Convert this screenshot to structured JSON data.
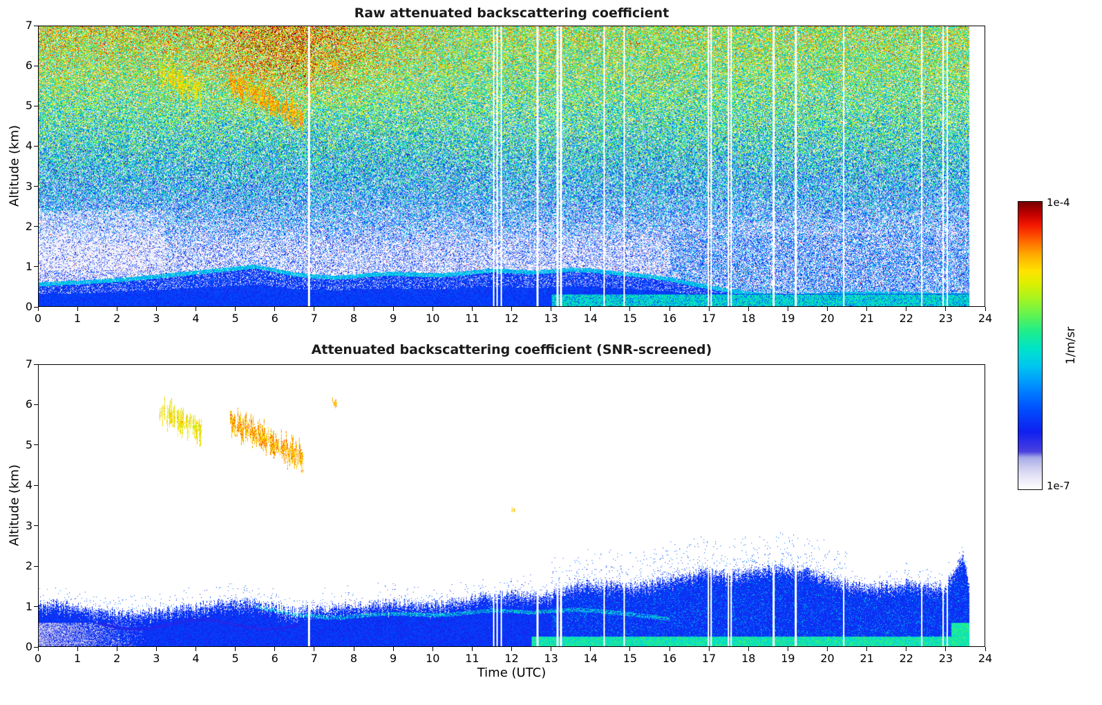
{
  "figure": {
    "background": "#ffffff"
  },
  "colorbar": {
    "top_label": "1e-4",
    "bottom_label": "1e-7",
    "units_label": "1/m/sr",
    "scale": "log",
    "stops": [
      [
        0.0,
        "#ffffff"
      ],
      [
        0.02,
        "#f4f3fb"
      ],
      [
        0.05,
        "#e2e1f6"
      ],
      [
        0.08,
        "#c8c9ef"
      ],
      [
        0.11,
        "#a7abe8"
      ],
      [
        0.13,
        "#4b42e0"
      ],
      [
        0.2,
        "#1020f0"
      ],
      [
        0.28,
        "#0050ff"
      ],
      [
        0.36,
        "#0090ff"
      ],
      [
        0.43,
        "#00c8f0"
      ],
      [
        0.49,
        "#00e4c8"
      ],
      [
        0.55,
        "#20ee8c"
      ],
      [
        0.61,
        "#66f44e"
      ],
      [
        0.67,
        "#aef41e"
      ],
      [
        0.72,
        "#e0f000"
      ],
      [
        0.76,
        "#ffe400"
      ],
      [
        0.82,
        "#ffa800"
      ],
      [
        0.87,
        "#ff6000"
      ],
      [
        0.92,
        "#f51800"
      ],
      [
        0.96,
        "#c00000"
      ],
      [
        1.0,
        "#7a0000"
      ]
    ]
  },
  "chart_data": [
    {
      "type": "heatmap",
      "panel": "top",
      "title": "Raw attenuated backscattering coefficient",
      "xlabel": "",
      "ylabel": "Altitude (km)",
      "xlim": [
        0,
        24
      ],
      "ylim": [
        0,
        7
      ],
      "xticks": [
        0,
        1,
        2,
        3,
        4,
        5,
        6,
        7,
        8,
        9,
        10,
        11,
        12,
        13,
        14,
        15,
        16,
        17,
        18,
        19,
        20,
        21,
        22,
        23,
        24
      ],
      "yticks": [
        0,
        1,
        2,
        3,
        4,
        5,
        6,
        7
      ],
      "value_scale": "log",
      "value_min": "1e-7",
      "value_max": "1e-4",
      "units": "1/m/sr",
      "data_end_utc": 23.6,
      "gaps_utc": [
        [
          6.85,
          0.05
        ],
        [
          11.54,
          0.035
        ],
        [
          11.63,
          0.035
        ],
        [
          11.72,
          0.035
        ],
        [
          12.65,
          0.04
        ],
        [
          13.16,
          0.05
        ],
        [
          13.25,
          0.05
        ],
        [
          14.34,
          0.04
        ],
        [
          14.85,
          0.04
        ],
        [
          16.99,
          0.035
        ],
        [
          17.06,
          0.035
        ],
        [
          17.49,
          0.035
        ],
        [
          17.57,
          0.035
        ],
        [
          18.64,
          0.04
        ],
        [
          19.2,
          0.04
        ],
        [
          20.42,
          0.04
        ],
        [
          22.4,
          0.035
        ],
        [
          22.94,
          0.04
        ],
        [
          23.04,
          0.04
        ]
      ],
      "boundary_layer_km": {
        "t": [
          0,
          0.5,
          1,
          1.5,
          2,
          2.5,
          3,
          3.5,
          4,
          4.5,
          5,
          5.5,
          6,
          6.5,
          7,
          7.5,
          8,
          8.5,
          9,
          9.5,
          10,
          10.5,
          11,
          11.5,
          12,
          12.5,
          13,
          13.5,
          14,
          14.5,
          15,
          15.5,
          16,
          16.5,
          17,
          17.5,
          18,
          19,
          20,
          21,
          22,
          23,
          23.6
        ],
        "z": [
          0.55,
          0.58,
          0.6,
          0.63,
          0.66,
          0.7,
          0.75,
          0.8,
          0.85,
          0.9,
          0.95,
          1.0,
          0.9,
          0.8,
          0.75,
          0.72,
          0.75,
          0.8,
          0.82,
          0.8,
          0.78,
          0.8,
          0.85,
          0.9,
          0.88,
          0.85,
          0.88,
          0.92,
          0.9,
          0.85,
          0.8,
          0.75,
          0.68,
          0.58,
          0.48,
          0.4,
          0.32,
          0.26,
          0.3,
          0.33,
          0.32,
          0.28,
          0.3
        ]
      },
      "cloud_layers": [
        {
          "t_start": 3.05,
          "t_end": 4.15,
          "z_start": 5.85,
          "z_end": 5.35,
          "half_depth": 0.3,
          "v_min": 0.68,
          "v_max": 0.8,
          "density": 0.8
        },
        {
          "t_start": 4.85,
          "t_end": 6.7,
          "z_start": 5.6,
          "z_end": 4.7,
          "half_depth": 0.32,
          "v_min": 0.72,
          "v_max": 0.88,
          "density": 0.85
        },
        {
          "t_start": 7.44,
          "t_end": 7.56,
          "z_start": 6.1,
          "z_end": 6.02,
          "half_depth": 0.1,
          "v_min": 0.76,
          "v_max": 0.84,
          "density": 0.9
        }
      ]
    },
    {
      "type": "heatmap",
      "panel": "bottom",
      "title": "Attenuated backscattering coefficient (SNR-screened)",
      "xlabel": "Time (UTC)",
      "ylabel": "Altitude (km)",
      "xlim": [
        0,
        24
      ],
      "ylim": [
        0,
        7
      ],
      "xticks": [
        0,
        1,
        2,
        3,
        4,
        5,
        6,
        7,
        8,
        9,
        10,
        11,
        12,
        13,
        14,
        15,
        16,
        17,
        18,
        19,
        20,
        21,
        22,
        23,
        24
      ],
      "yticks": [
        0,
        1,
        2,
        3,
        4,
        5,
        6,
        7
      ],
      "value_scale": "log",
      "value_min": "1e-7",
      "value_max": "1e-4",
      "units": "1/m/sr",
      "data_end_utc": 23.6,
      "gaps_utc": [
        [
          6.85,
          0.05
        ],
        [
          11.54,
          0.035
        ],
        [
          11.63,
          0.035
        ],
        [
          11.72,
          0.035
        ],
        [
          12.65,
          0.04
        ],
        [
          13.16,
          0.05
        ],
        [
          13.25,
          0.05
        ],
        [
          14.34,
          0.04
        ],
        [
          14.85,
          0.04
        ],
        [
          16.99,
          0.035
        ],
        [
          17.06,
          0.035
        ],
        [
          17.49,
          0.035
        ],
        [
          17.57,
          0.035
        ],
        [
          18.64,
          0.04
        ],
        [
          19.2,
          0.04
        ],
        [
          20.42,
          0.04
        ],
        [
          22.4,
          0.035
        ],
        [
          22.94,
          0.04
        ],
        [
          23.04,
          0.04
        ]
      ],
      "boundary_layer_km": {
        "t": [
          0,
          0.5,
          1,
          1.5,
          2,
          2.5,
          3,
          3.5,
          4,
          4.5,
          5,
          5.5,
          6,
          6.5,
          7,
          7.5,
          8,
          8.5,
          9,
          9.5,
          10,
          10.5,
          11,
          11.5,
          12,
          12.5,
          13,
          13.5,
          14,
          14.5,
          15,
          15.5,
          16,
          16.5,
          17,
          17.5,
          18,
          19,
          20,
          21,
          22,
          23,
          23.6
        ],
        "z": [
          0.55,
          0.58,
          0.6,
          0.63,
          0.66,
          0.7,
          0.75,
          0.8,
          0.85,
          0.9,
          0.95,
          1.0,
          0.9,
          0.8,
          0.75,
          0.72,
          0.75,
          0.8,
          0.82,
          0.8,
          0.78,
          0.8,
          0.85,
          0.9,
          0.88,
          0.85,
          0.88,
          0.92,
          0.9,
          0.85,
          0.8,
          0.75,
          0.68,
          0.58,
          0.48,
          0.4,
          0.32,
          0.26,
          0.3,
          0.33,
          0.32,
          0.28,
          0.3
        ]
      },
      "aerosol_top_km": {
        "t": [
          0,
          0.5,
          1,
          2,
          3,
          4,
          5,
          5.5,
          6,
          6.5,
          7,
          8,
          9,
          10,
          11,
          11.5,
          12,
          12.5,
          13,
          13.5,
          14,
          14.5,
          15,
          15.5,
          16,
          16.5,
          17,
          17.5,
          18,
          18.5,
          19,
          19.5,
          20,
          20.5,
          21,
          21.5,
          22,
          22.5,
          23,
          23.45,
          23.6
        ],
        "z": [
          1.05,
          1.1,
          1.0,
          0.85,
          0.9,
          1.0,
          1.15,
          1.1,
          1.0,
          0.92,
          0.95,
          1.05,
          1.1,
          1.05,
          1.2,
          1.3,
          1.35,
          1.3,
          1.35,
          1.5,
          1.6,
          1.55,
          1.5,
          1.6,
          1.7,
          1.8,
          1.9,
          1.8,
          1.9,
          1.95,
          2.0,
          1.9,
          1.75,
          1.6,
          1.5,
          1.55,
          1.6,
          1.55,
          1.5,
          2.3,
          1.6
        ]
      },
      "cloud_layers": [
        {
          "t_start": 3.05,
          "t_end": 4.15,
          "z_start": 5.85,
          "z_end": 5.35,
          "half_depth": 0.3,
          "v_min": 0.68,
          "v_max": 0.8,
          "density": 0.8
        },
        {
          "t_start": 4.85,
          "t_end": 6.7,
          "z_start": 5.6,
          "z_end": 4.7,
          "half_depth": 0.32,
          "v_min": 0.72,
          "v_max": 0.88,
          "density": 0.85
        },
        {
          "t_start": 7.44,
          "t_end": 7.56,
          "z_start": 6.1,
          "z_end": 6.02,
          "half_depth": 0.1,
          "v_min": 0.76,
          "v_max": 0.84,
          "density": 0.9
        },
        {
          "t_start": 12.0,
          "t_end": 12.08,
          "z_start": 3.42,
          "z_end": 3.38,
          "half_depth": 0.06,
          "v_min": 0.72,
          "v_max": 0.8,
          "density": 0.9
        }
      ]
    }
  ]
}
